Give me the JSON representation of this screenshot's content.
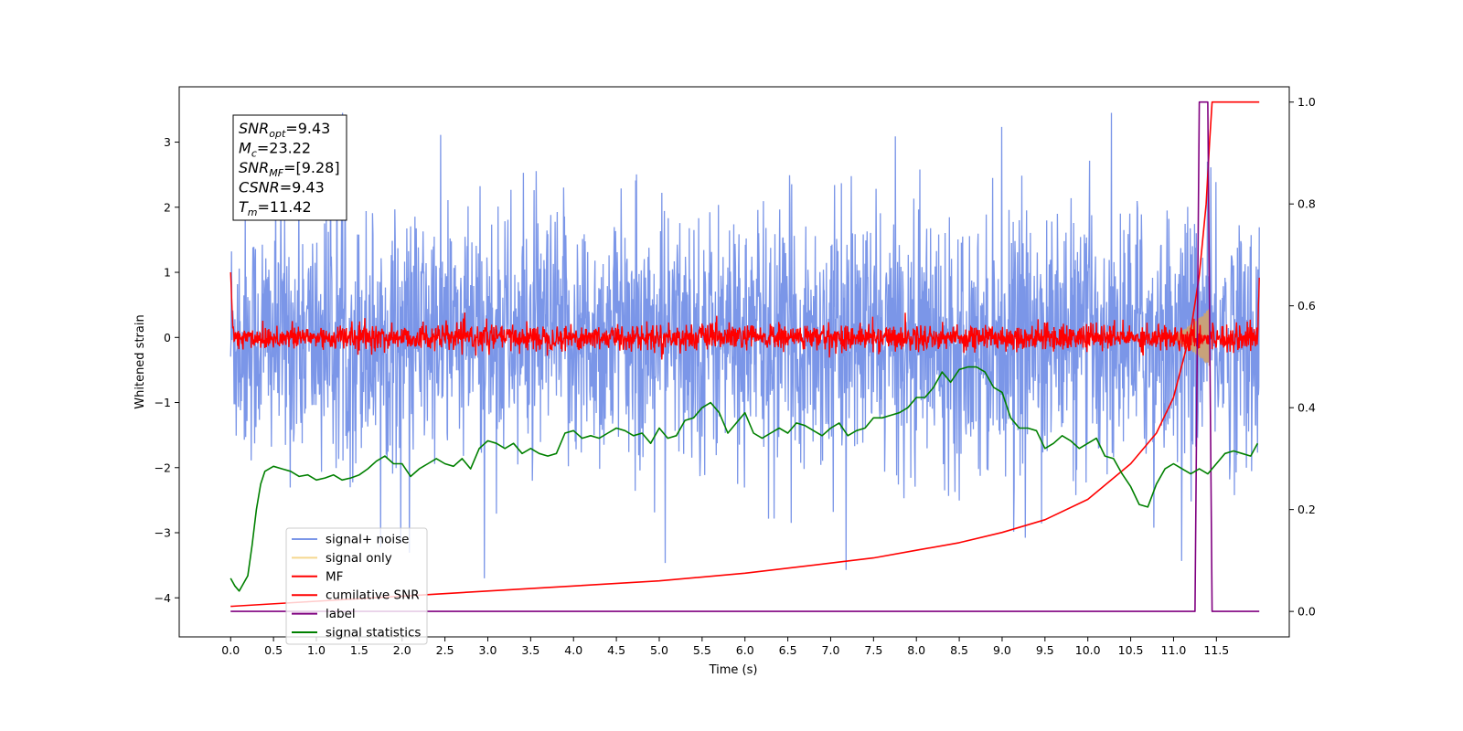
{
  "chart_data": {
    "type": "line",
    "xlabel": "Time (s)",
    "ylabel_left": "Whitened strain",
    "ylabel_right": "",
    "xlim": [
      -0.6,
      12.35
    ],
    "ylim_left": [
      -4.6,
      3.85
    ],
    "ylim_right": [
      -0.05,
      1.03
    ],
    "x_ticks": [
      "0.0",
      "0.5",
      "1.0",
      "1.5",
      "2.0",
      "2.5",
      "3.0",
      "3.5",
      "4.0",
      "4.5",
      "5.0",
      "5.5",
      "6.0",
      "6.5",
      "7.0",
      "7.5",
      "8.0",
      "8.5",
      "9.0",
      "9.5",
      "10.0",
      "10.5",
      "11.0",
      "11.5"
    ],
    "y_ticks_left": [
      "3",
      "2",
      "1",
      "0",
      "-1",
      "-2",
      "-3",
      "-4"
    ],
    "y_ticks_right": [
      "1.0",
      "0.8",
      "0.6",
      "0.4",
      "0.2",
      "0.0"
    ],
    "grid": false,
    "legend_position": "lower-left",
    "legend": [
      {
        "label": "signal+ noise",
        "color": "#7b96e8"
      },
      {
        "label": "signal only",
        "color": "#f5d78f"
      },
      {
        "label": "MF",
        "color": "#ff0000"
      },
      {
        "label": "cumilative SNR",
        "color": "#ff0000"
      },
      {
        "label": "label",
        "color": "#800080"
      },
      {
        "label": "signal statistics",
        "color": "#008000"
      }
    ],
    "annotation": {
      "lines": [
        {
          "base": "SNR",
          "sub": "opt",
          "value": "=9.43"
        },
        {
          "base": "M",
          "sub": "c",
          "value": "=23.22"
        },
        {
          "base": "SNR",
          "sub": "MF",
          "value": "=[9.28]"
        },
        {
          "base": "CSNR",
          "sub": "",
          "value": "=9.43"
        },
        {
          "base": "T",
          "sub": "m",
          "value": "=11.42"
        }
      ]
    },
    "series": [
      {
        "name": "signal+ noise",
        "axis": "left",
        "color": "#7b96e8",
        "description_range": [
          -2.2,
          2.2
        ]
      },
      {
        "name": "MF",
        "axis": "left",
        "color": "#ff0000",
        "start_value": 1.0,
        "end_value": 0.85
      },
      {
        "name": "signal only",
        "axis": "left",
        "color": "#c8a27a",
        "chirp_start": 10.9,
        "merger_time": 11.42,
        "peak_amplitude": 0.45
      },
      {
        "name": "cumilative SNR",
        "axis": "right",
        "color": "#ff0000",
        "x": [
          0.0,
          1.0,
          2.0,
          3.0,
          4.0,
          5.0,
          6.0,
          7.0,
          7.5,
          8.0,
          8.5,
          9.0,
          9.5,
          10.0,
          10.5,
          10.8,
          11.0,
          11.2,
          11.3,
          11.38,
          11.42,
          11.45,
          12.0
        ],
        "values": [
          0.01,
          0.02,
          0.03,
          0.04,
          0.05,
          0.06,
          0.075,
          0.095,
          0.105,
          0.12,
          0.135,
          0.155,
          0.18,
          0.22,
          0.29,
          0.35,
          0.42,
          0.55,
          0.66,
          0.8,
          0.92,
          1.0,
          1.0
        ]
      },
      {
        "name": "label",
        "axis": "right",
        "color": "#800080",
        "x": [
          0.0,
          11.25,
          11.3,
          11.35,
          11.4,
          11.45,
          12.0
        ],
        "values": [
          0.0,
          0.0,
          1.0,
          1.0,
          1.0,
          0.0,
          0.0
        ]
      },
      {
        "name": "signal statistics",
        "axis": "right",
        "color": "#008000",
        "x": [
          0.0,
          0.05,
          0.1,
          0.15,
          0.2,
          0.25,
          0.3,
          0.35,
          0.4,
          0.5,
          0.6,
          0.7,
          0.8,
          0.9,
          1.0,
          1.1,
          1.2,
          1.3,
          1.4,
          1.5,
          1.6,
          1.7,
          1.8,
          1.9,
          2.0,
          2.1,
          2.2,
          2.3,
          2.4,
          2.5,
          2.6,
          2.7,
          2.8,
          2.9,
          3.0,
          3.1,
          3.2,
          3.3,
          3.4,
          3.5,
          3.6,
          3.7,
          3.8,
          3.9,
          4.0,
          4.1,
          4.2,
          4.3,
          4.4,
          4.5,
          4.6,
          4.7,
          4.8,
          4.9,
          5.0,
          5.1,
          5.2,
          5.3,
          5.4,
          5.5,
          5.6,
          5.7,
          5.8,
          5.9,
          6.0,
          6.1,
          6.2,
          6.3,
          6.4,
          6.5,
          6.6,
          6.7,
          6.8,
          6.9,
          7.0,
          7.1,
          7.2,
          7.3,
          7.4,
          7.5,
          7.6,
          7.7,
          7.8,
          7.9,
          8.0,
          8.1,
          8.2,
          8.3,
          8.4,
          8.5,
          8.6,
          8.7,
          8.8,
          8.9,
          9.0,
          9.1,
          9.2,
          9.3,
          9.4,
          9.5,
          9.6,
          9.7,
          9.8,
          9.9,
          10.0,
          10.1,
          10.2,
          10.3,
          10.4,
          10.5,
          10.6,
          10.7,
          10.8,
          10.9,
          11.0,
          11.1,
          11.2,
          11.3,
          11.4,
          11.5,
          11.6,
          11.7,
          11.8,
          11.9,
          11.98
        ],
        "values": [
          0.065,
          0.05,
          0.04,
          0.055,
          0.07,
          0.13,
          0.2,
          0.25,
          0.275,
          0.285,
          0.28,
          0.275,
          0.265,
          0.268,
          0.258,
          0.262,
          0.268,
          0.258,
          0.262,
          0.268,
          0.28,
          0.295,
          0.305,
          0.29,
          0.29,
          0.265,
          0.28,
          0.29,
          0.3,
          0.29,
          0.285,
          0.3,
          0.28,
          0.32,
          0.335,
          0.33,
          0.32,
          0.33,
          0.31,
          0.32,
          0.31,
          0.305,
          0.31,
          0.35,
          0.355,
          0.34,
          0.345,
          0.34,
          0.35,
          0.36,
          0.355,
          0.345,
          0.35,
          0.33,
          0.36,
          0.34,
          0.345,
          0.375,
          0.38,
          0.4,
          0.41,
          0.39,
          0.35,
          0.37,
          0.39,
          0.35,
          0.34,
          0.35,
          0.36,
          0.35,
          0.37,
          0.365,
          0.355,
          0.345,
          0.36,
          0.37,
          0.345,
          0.355,
          0.36,
          0.38,
          0.38,
          0.385,
          0.39,
          0.4,
          0.42,
          0.42,
          0.44,
          0.47,
          0.45,
          0.475,
          0.48,
          0.48,
          0.47,
          0.44,
          0.43,
          0.38,
          0.36,
          0.36,
          0.355,
          0.32,
          0.33,
          0.345,
          0.335,
          0.32,
          0.33,
          0.34,
          0.305,
          0.3,
          0.27,
          0.245,
          0.21,
          0.205,
          0.25,
          0.28,
          0.29,
          0.28,
          0.27,
          0.28,
          0.27,
          0.29,
          0.31,
          0.315,
          0.31,
          0.305,
          0.33
        ]
      }
    ]
  }
}
